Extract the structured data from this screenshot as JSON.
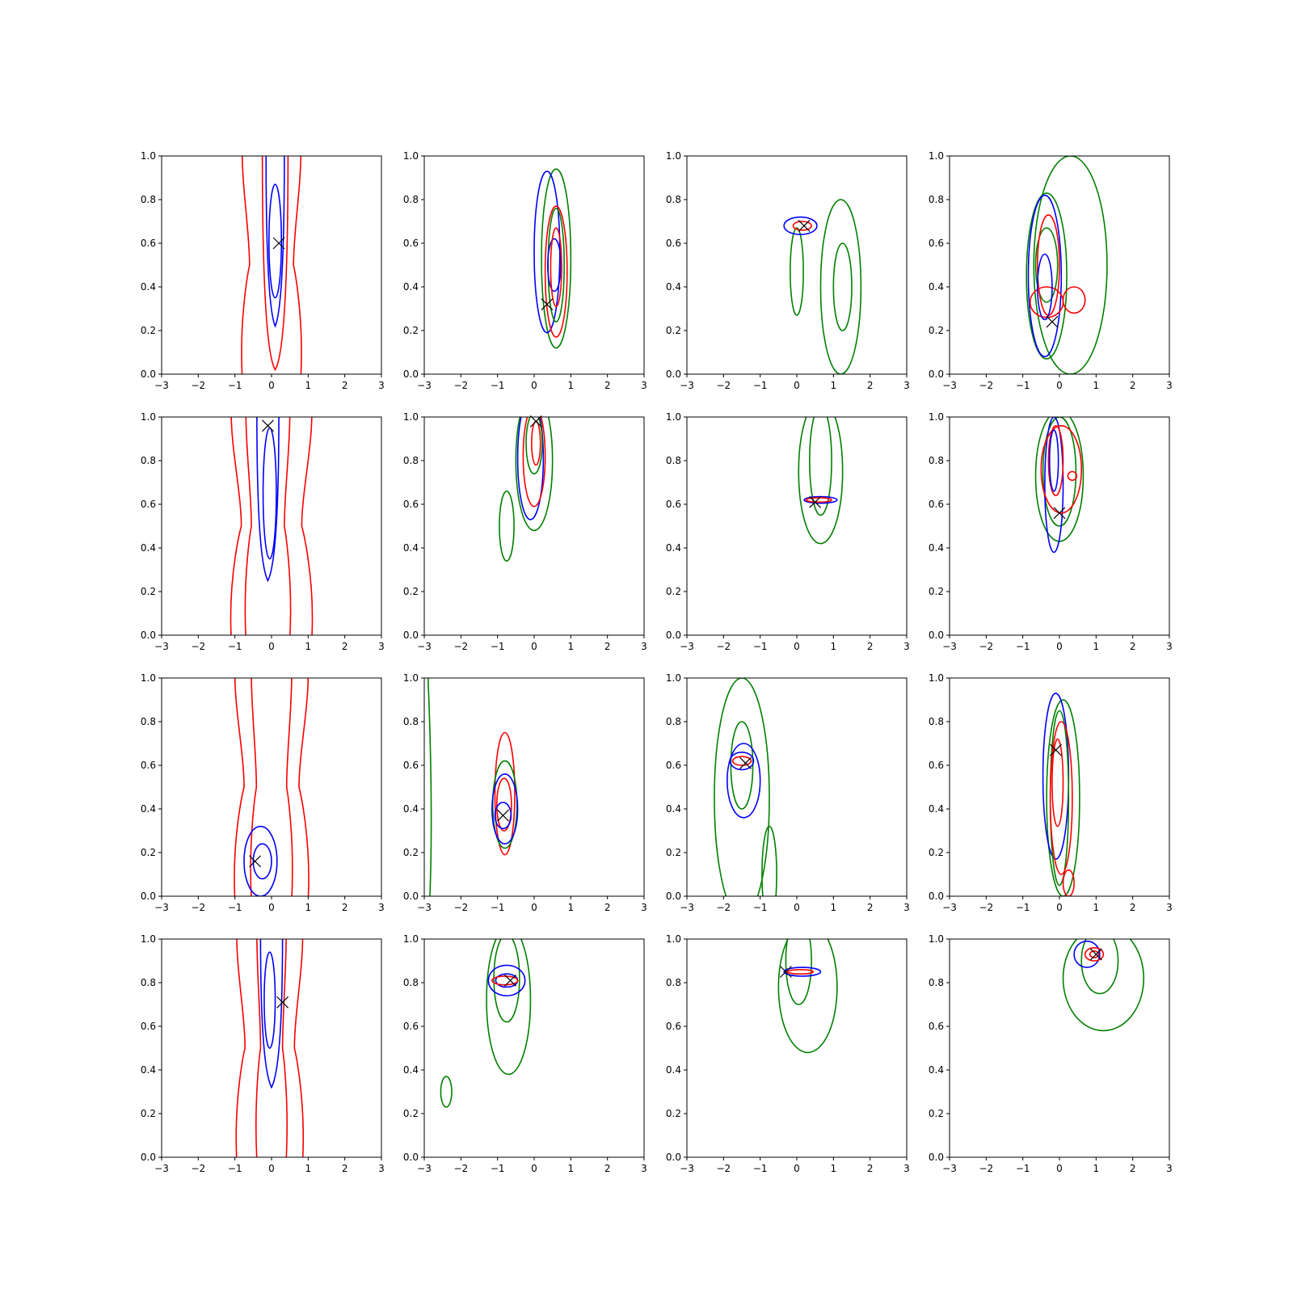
{
  "colors": {
    "series_1": "#0000ff",
    "series_2": "#ff0000",
    "series_3": "#008000",
    "marker": "#000000"
  },
  "chart_data": {
    "type": "contour",
    "layout": "4x4 grid of subplots",
    "marker_glyph": "×",
    "grid": false,
    "legend": false,
    "xlim": [
      -3,
      3
    ],
    "ylim": [
      0,
      1
    ],
    "x_ticks": [
      "−3",
      "−2",
      "−1",
      "0",
      "1",
      "2",
      "3"
    ],
    "y_ticks": [
      "0.0",
      "0.2",
      "0.4",
      "0.6",
      "0.8",
      "1.0"
    ],
    "panels": [
      {
        "row": 1,
        "col": 1,
        "marker": [
          0.2,
          0.6
        ],
        "contours": [
          {
            "color": "red",
            "shape": "band",
            "cx": 0.0,
            "half_width": 0.8,
            "y": [
              0.0,
              1.0
            ]
          },
          {
            "color": "red",
            "shape": "band",
            "cx": 0.1,
            "half_width": 0.35,
            "y": [
              0.02,
              1.0
            ]
          },
          {
            "color": "blue",
            "shape": "band",
            "cx": 0.1,
            "half_width": 0.25,
            "y": [
              0.22,
              1.0
            ]
          },
          {
            "color": "blue",
            "shape": "ellipse",
            "cx": 0.1,
            "cy": 0.61,
            "rx": 0.17,
            "ry": 0.26
          }
        ]
      },
      {
        "row": 1,
        "col": 2,
        "marker": [
          0.35,
          0.32
        ],
        "contours": [
          {
            "color": "green",
            "shape": "ellipse",
            "cx": 0.6,
            "cy": 0.53,
            "rx": 0.4,
            "ry": 0.41
          },
          {
            "color": "blue",
            "shape": "ellipse",
            "cx": 0.35,
            "cy": 0.56,
            "rx": 0.35,
            "ry": 0.37
          },
          {
            "color": "red",
            "shape": "ellipse",
            "cx": 0.6,
            "cy": 0.47,
            "rx": 0.3,
            "ry": 0.3
          },
          {
            "color": "green",
            "shape": "ellipse",
            "cx": 0.6,
            "cy": 0.5,
            "rx": 0.22,
            "ry": 0.26
          },
          {
            "color": "blue",
            "shape": "ellipse",
            "cx": 0.55,
            "cy": 0.5,
            "rx": 0.18,
            "ry": 0.12
          },
          {
            "color": "red",
            "shape": "ellipse",
            "cx": 0.6,
            "cy": 0.49,
            "rx": 0.15,
            "ry": 0.18
          }
        ]
      },
      {
        "row": 1,
        "col": 3,
        "marker": [
          0.2,
          0.68
        ],
        "contours": [
          {
            "color": "green",
            "shape": "ellipse",
            "cx": 1.2,
            "cy": 0.4,
            "rx": 0.55,
            "ry": 0.4
          },
          {
            "color": "green",
            "shape": "ellipse",
            "cx": 1.25,
            "cy": 0.4,
            "rx": 0.25,
            "ry": 0.2
          },
          {
            "color": "green",
            "shape": "ellipse",
            "cx": 0.0,
            "cy": 0.47,
            "rx": 0.18,
            "ry": 0.2
          },
          {
            "color": "blue",
            "shape": "ellipse",
            "cx": 0.1,
            "cy": 0.68,
            "rx": 0.45,
            "ry": 0.04
          },
          {
            "color": "red",
            "shape": "ellipse",
            "cx": 0.15,
            "cy": 0.68,
            "rx": 0.25,
            "ry": 0.02
          }
        ]
      },
      {
        "row": 1,
        "col": 4,
        "marker": [
          -0.2,
          0.24
        ],
        "contours": [
          {
            "color": "green",
            "shape": "ellipse",
            "cx": 0.3,
            "cy": 0.5,
            "rx": 1.0,
            "ry": 0.5
          },
          {
            "color": "green",
            "shape": "ellipse",
            "cx": -0.35,
            "cy": 0.45,
            "rx": 0.55,
            "ry": 0.38
          },
          {
            "color": "blue",
            "shape": "ellipse",
            "cx": -0.4,
            "cy": 0.45,
            "rx": 0.45,
            "ry": 0.37
          },
          {
            "color": "green",
            "shape": "ellipse",
            "cx": -0.35,
            "cy": 0.5,
            "rx": 0.3,
            "ry": 0.17
          },
          {
            "color": "red",
            "shape": "ellipse",
            "cx": -0.3,
            "cy": 0.5,
            "rx": 0.3,
            "ry": 0.23
          },
          {
            "color": "red",
            "shape": "ellipse",
            "cx": -0.35,
            "cy": 0.33,
            "rx": 0.45,
            "ry": 0.07
          },
          {
            "color": "red",
            "shape": "ellipse",
            "cx": 0.4,
            "cy": 0.34,
            "rx": 0.3,
            "ry": 0.06
          },
          {
            "color": "blue",
            "shape": "ellipse",
            "cx": -0.4,
            "cy": 0.4,
            "rx": 0.2,
            "ry": 0.15
          }
        ]
      },
      {
        "row": 2,
        "col": 1,
        "marker": [
          -0.1,
          0.96
        ],
        "contours": [
          {
            "color": "red",
            "shape": "band",
            "cx": 0.0,
            "half_width": 1.1,
            "y": [
              0.0,
              1.0
            ]
          },
          {
            "color": "red",
            "shape": "band",
            "cx": -0.1,
            "half_width": 0.6,
            "y": [
              0.0,
              1.0
            ]
          },
          {
            "color": "blue",
            "shape": "band",
            "cx": -0.1,
            "half_width": 0.3,
            "y": [
              0.25,
              1.0
            ]
          },
          {
            "color": "blue",
            "shape": "ellipse",
            "cx": -0.05,
            "cy": 0.65,
            "rx": 0.18,
            "ry": 0.3
          }
        ]
      },
      {
        "row": 2,
        "col": 2,
        "marker": [
          0.05,
          0.98
        ],
        "contours": [
          {
            "color": "green",
            "shape": "ellipse",
            "cx": 0.0,
            "cy": 0.8,
            "rx": 0.5,
            "ry": 0.32
          },
          {
            "color": "green",
            "shape": "ellipse",
            "cx": -0.75,
            "cy": 0.5,
            "rx": 0.2,
            "ry": 0.16
          },
          {
            "color": "blue",
            "shape": "ellipse",
            "cx": -0.1,
            "cy": 0.81,
            "rx": 0.35,
            "ry": 0.28
          },
          {
            "color": "red",
            "shape": "ellipse",
            "cx": 0.0,
            "cy": 0.82,
            "rx": 0.3,
            "ry": 0.23
          },
          {
            "color": "green",
            "shape": "ellipse",
            "cx": 0.0,
            "cy": 0.88,
            "rx": 0.22,
            "ry": 0.14
          },
          {
            "color": "red",
            "shape": "ellipse",
            "cx": 0.05,
            "cy": 0.88,
            "rx": 0.12,
            "ry": 0.1
          }
        ]
      },
      {
        "row": 2,
        "col": 3,
        "marker": [
          0.5,
          0.61
        ],
        "contours": [
          {
            "color": "green",
            "shape": "ellipse",
            "cx": 0.65,
            "cy": 0.75,
            "rx": 0.6,
            "ry": 0.33
          },
          {
            "color": "green",
            "shape": "ellipse",
            "cx": 0.65,
            "cy": 0.8,
            "rx": 0.3,
            "ry": 0.25
          },
          {
            "color": "blue",
            "shape": "ellipse",
            "cx": 0.65,
            "cy": 0.62,
            "rx": 0.45,
            "ry": 0.015
          },
          {
            "color": "red",
            "shape": "ellipse",
            "cx": 0.6,
            "cy": 0.62,
            "rx": 0.35,
            "ry": 0.01
          }
        ]
      },
      {
        "row": 2,
        "col": 4,
        "marker": [
          0.0,
          0.56
        ],
        "contours": [
          {
            "color": "green",
            "shape": "ellipse",
            "cx": 0.0,
            "cy": 0.73,
            "rx": 0.65,
            "ry": 0.3
          },
          {
            "color": "green",
            "shape": "ellipse",
            "cx": 0.0,
            "cy": 0.75,
            "rx": 0.45,
            "ry": 0.25
          },
          {
            "color": "blue",
            "shape": "ellipse",
            "cx": -0.15,
            "cy": 0.69,
            "rx": 0.25,
            "ry": 0.31
          },
          {
            "color": "red",
            "shape": "ellipse",
            "cx": 0.05,
            "cy": 0.76,
            "rx": 0.55,
            "ry": 0.2
          },
          {
            "color": "red",
            "shape": "ellipse",
            "cx": -0.1,
            "cy": 0.8,
            "rx": 0.2,
            "ry": 0.16
          },
          {
            "color": "blue",
            "shape": "ellipse",
            "cx": -0.15,
            "cy": 0.8,
            "rx": 0.12,
            "ry": 0.14
          },
          {
            "color": "red",
            "shape": "ellipse",
            "cx": 0.35,
            "cy": 0.73,
            "rx": 0.12,
            "ry": 0.02
          }
        ]
      },
      {
        "row": 3,
        "col": 1,
        "marker": [
          -0.45,
          0.16
        ],
        "contours": [
          {
            "color": "red",
            "shape": "band",
            "cx": 0.0,
            "half_width": 1.0,
            "y": [
              0.0,
              1.0
            ]
          },
          {
            "color": "red",
            "shape": "band",
            "cx": 0.0,
            "half_width": 0.55,
            "y": [
              0.0,
              1.0
            ]
          },
          {
            "color": "blue",
            "shape": "ellipse",
            "cx": -0.3,
            "cy": 0.16,
            "rx": 0.45,
            "ry": 0.16
          },
          {
            "color": "blue",
            "shape": "ellipse",
            "cx": -0.25,
            "cy": 0.16,
            "rx": 0.25,
            "ry": 0.08
          }
        ]
      },
      {
        "row": 3,
        "col": 2,
        "marker": [
          -0.85,
          0.37
        ],
        "contours": [
          {
            "color": "green",
            "shape": "edge",
            "x_top": -2.9,
            "x_bottom": -2.85
          },
          {
            "color": "red",
            "shape": "ellipse",
            "cx": -0.8,
            "cy": 0.47,
            "rx": 0.27,
            "ry": 0.28
          },
          {
            "color": "green",
            "shape": "ellipse",
            "cx": -0.8,
            "cy": 0.42,
            "rx": 0.33,
            "ry": 0.2
          },
          {
            "color": "blue",
            "shape": "ellipse",
            "cx": -0.8,
            "cy": 0.4,
            "rx": 0.35,
            "ry": 0.16
          },
          {
            "color": "red",
            "shape": "ellipse",
            "cx": -0.82,
            "cy": 0.42,
            "rx": 0.2,
            "ry": 0.12
          },
          {
            "color": "blue",
            "shape": "ellipse",
            "cx": -0.85,
            "cy": 0.37,
            "rx": 0.22,
            "ry": 0.06
          }
        ]
      },
      {
        "row": 3,
        "col": 3,
        "marker": [
          -1.4,
          0.61
        ],
        "contours": [
          {
            "color": "green",
            "shape": "ellipse",
            "cx": -1.5,
            "cy": 0.45,
            "rx": 0.75,
            "ry": 0.55
          },
          {
            "color": "green",
            "shape": "ellipse",
            "cx": -0.75,
            "cy": 0.1,
            "rx": 0.2,
            "ry": 0.22
          },
          {
            "color": "green",
            "shape": "ellipse",
            "cx": -1.5,
            "cy": 0.6,
            "rx": 0.3,
            "ry": 0.2
          },
          {
            "color": "blue",
            "shape": "ellipse",
            "cx": -1.45,
            "cy": 0.53,
            "rx": 0.45,
            "ry": 0.17
          },
          {
            "color": "blue",
            "shape": "ellipse",
            "cx": -1.5,
            "cy": 0.62,
            "rx": 0.32,
            "ry": 0.04
          },
          {
            "color": "red",
            "shape": "ellipse",
            "cx": -1.5,
            "cy": 0.62,
            "rx": 0.25,
            "ry": 0.02
          }
        ]
      },
      {
        "row": 3,
        "col": 4,
        "marker": [
          -0.1,
          0.67
        ],
        "contours": [
          {
            "color": "green",
            "shape": "ellipse",
            "cx": 0.1,
            "cy": 0.45,
            "rx": 0.45,
            "ry": 0.45
          },
          {
            "color": "blue",
            "shape": "ellipse",
            "cx": -0.1,
            "cy": 0.55,
            "rx": 0.35,
            "ry": 0.38
          },
          {
            "color": "green",
            "shape": "ellipse",
            "cx": 0.0,
            "cy": 0.45,
            "rx": 0.25,
            "ry": 0.4
          },
          {
            "color": "red",
            "shape": "ellipse",
            "cx": 0.05,
            "cy": 0.45,
            "rx": 0.3,
            "ry": 0.35
          },
          {
            "color": "red",
            "shape": "ellipse",
            "cx": -0.05,
            "cy": 0.52,
            "rx": 0.15,
            "ry": 0.2
          },
          {
            "color": "red",
            "shape": "ellipse",
            "cx": 0.25,
            "cy": 0.06,
            "rx": 0.15,
            "ry": 0.06
          }
        ]
      },
      {
        "row": 4,
        "col": 1,
        "marker": [
          0.3,
          0.71
        ],
        "contours": [
          {
            "color": "red",
            "shape": "band",
            "cx": -0.05,
            "half_width": 0.9,
            "y": [
              0.0,
              1.0
            ]
          },
          {
            "color": "red",
            "shape": "band",
            "cx": 0.0,
            "half_width": 0.4,
            "y": [
              0.0,
              1.0
            ]
          },
          {
            "color": "blue",
            "shape": "band",
            "cx": 0.0,
            "half_width": 0.3,
            "y": [
              0.32,
              1.0
            ]
          },
          {
            "color": "blue",
            "shape": "ellipse",
            "cx": -0.05,
            "cy": 0.72,
            "rx": 0.15,
            "ry": 0.22
          }
        ]
      },
      {
        "row": 4,
        "col": 2,
        "marker": [
          -0.65,
          0.81
        ],
        "contours": [
          {
            "color": "green",
            "shape": "ellipse",
            "cx": -0.7,
            "cy": 0.72,
            "rx": 0.6,
            "ry": 0.34
          },
          {
            "color": "green",
            "shape": "ellipse",
            "cx": -0.75,
            "cy": 0.82,
            "rx": 0.35,
            "ry": 0.2
          },
          {
            "color": "green",
            "shape": "ellipse",
            "cx": -2.4,
            "cy": 0.3,
            "rx": 0.15,
            "ry": 0.07
          },
          {
            "color": "blue",
            "shape": "ellipse",
            "cx": -0.75,
            "cy": 0.81,
            "rx": 0.5,
            "ry": 0.07
          },
          {
            "color": "blue",
            "shape": "ellipse",
            "cx": -0.75,
            "cy": 0.81,
            "rx": 0.3,
            "ry": 0.03
          },
          {
            "color": "red",
            "shape": "ellipse",
            "cx": -0.8,
            "cy": 0.81,
            "rx": 0.35,
            "ry": 0.02
          }
        ]
      },
      {
        "row": 4,
        "col": 3,
        "marker": [
          -0.3,
          0.85
        ],
        "contours": [
          {
            "color": "green",
            "shape": "ellipse",
            "cx": 0.3,
            "cy": 0.78,
            "rx": 0.8,
            "ry": 0.3
          },
          {
            "color": "green",
            "shape": "ellipse",
            "cx": 0.05,
            "cy": 0.9,
            "rx": 0.35,
            "ry": 0.2
          },
          {
            "color": "blue",
            "shape": "ellipse",
            "cx": 0.15,
            "cy": 0.85,
            "rx": 0.5,
            "ry": 0.02
          },
          {
            "color": "red",
            "shape": "ellipse",
            "cx": 0.1,
            "cy": 0.85,
            "rx": 0.35,
            "ry": 0.01
          }
        ]
      },
      {
        "row": 4,
        "col": 4,
        "marker": [
          1.0,
          0.93
        ],
        "contours": [
          {
            "color": "green",
            "shape": "ellipse",
            "cx": 1.2,
            "cy": 0.82,
            "rx": 1.1,
            "ry": 0.24
          },
          {
            "color": "green",
            "shape": "ellipse",
            "cx": 1.1,
            "cy": 0.9,
            "rx": 0.5,
            "ry": 0.15
          },
          {
            "color": "blue",
            "shape": "ellipse",
            "cx": 0.75,
            "cy": 0.93,
            "rx": 0.35,
            "ry": 0.06
          },
          {
            "color": "red",
            "shape": "ellipse",
            "cx": 0.95,
            "cy": 0.93,
            "rx": 0.25,
            "ry": 0.03
          },
          {
            "color": "red",
            "shape": "ellipse",
            "cx": 0.95,
            "cy": 0.93,
            "rx": 0.12,
            "ry": 0.015
          }
        ]
      }
    ]
  }
}
